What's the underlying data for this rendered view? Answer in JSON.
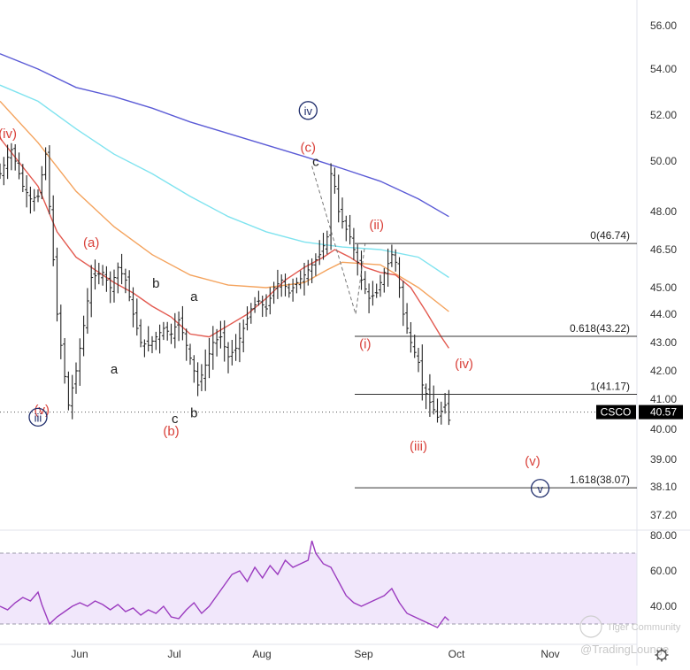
{
  "chart_data": [
    {
      "type": "candlestick",
      "symbol": "CSCO",
      "last_price": "40.57",
      "y_axis_ticks": [
        "56.00",
        "54.00",
        "52.00",
        "50.00",
        "48.00",
        "46.50",
        "45.00",
        "44.00",
        "43.00",
        "42.00",
        "41.00",
        "40.00",
        "39.00",
        "38.10",
        "37.20"
      ],
      "y_axis_values": [
        56.0,
        54.0,
        52.0,
        50.0,
        48.0,
        46.5,
        45.0,
        44.0,
        43.0,
        42.0,
        41.0,
        40.0,
        39.0,
        38.1,
        37.2
      ],
      "x_axis_ticks": [
        "Jun",
        "Jul",
        "Aug",
        "Sep",
        "Oct",
        "Nov"
      ],
      "price_path": [
        [
          0,
          49.5
        ],
        [
          3,
          50.5
        ],
        [
          6,
          49.0
        ],
        [
          8,
          48.5
        ],
        [
          10,
          48.6
        ],
        [
          12,
          50.3
        ],
        [
          13,
          48.2
        ],
        [
          15,
          44.0
        ],
        [
          17,
          41.8
        ],
        [
          18,
          40.8
        ],
        [
          20,
          42.0
        ],
        [
          22,
          43.6
        ],
        [
          24,
          45.4
        ],
        [
          27,
          45.6
        ],
        [
          29,
          45.0
        ],
        [
          31,
          45.8
        ],
        [
          33,
          45.3
        ],
        [
          35,
          44.0
        ],
        [
          37,
          43.0
        ],
        [
          39,
          42.9
        ],
        [
          41,
          43.2
        ],
        [
          43,
          43.5
        ],
        [
          45,
          43.3
        ],
        [
          47,
          43.8
        ],
        [
          49,
          42.9
        ],
        [
          51,
          42.0
        ],
        [
          52,
          41.5
        ],
        [
          54,
          42.2
        ],
        [
          56,
          43.0
        ],
        [
          58,
          43.2
        ],
        [
          60,
          42.5
        ],
        [
          62,
          42.8
        ],
        [
          64,
          43.5
        ],
        [
          66,
          44.2
        ],
        [
          68,
          44.5
        ],
        [
          70,
          44.2
        ],
        [
          72,
          45.0
        ],
        [
          74,
          45.3
        ],
        [
          76,
          44.8
        ],
        [
          78,
          45.2
        ],
        [
          80,
          45.5
        ],
        [
          82,
          45.9
        ],
        [
          84,
          46.3
        ],
        [
          86,
          47.0
        ],
        [
          87,
          49.5
        ],
        [
          88,
          49.0
        ],
        [
          89,
          48.0
        ],
        [
          90,
          47.6
        ],
        [
          92,
          47.0
        ],
        [
          94,
          46.0
        ],
        [
          95,
          45.3
        ],
        [
          97,
          44.6
        ],
        [
          99,
          44.8
        ],
        [
          101,
          45.6
        ],
        [
          103,
          46.3
        ],
        [
          104,
          46.0
        ],
        [
          106,
          44.0
        ],
        [
          108,
          43.0
        ],
        [
          110,
          42.3
        ],
        [
          111,
          41.5
        ],
        [
          113,
          40.9
        ],
        [
          115,
          40.4
        ],
        [
          117,
          40.8
        ],
        [
          118,
          40.3
        ]
      ],
      "ma_series": [
        {
          "color": "#5b5bd6",
          "path": [
            [
              0,
              54.7
            ],
            [
              10,
              54.0
            ],
            [
              20,
              53.2
            ],
            [
              30,
              52.8
            ],
            [
              40,
              52.3
            ],
            [
              50,
              51.7
            ],
            [
              60,
              51.2
            ],
            [
              70,
              50.7
            ],
            [
              80,
              50.2
            ],
            [
              90,
              49.7
            ],
            [
              100,
              49.2
            ],
            [
              110,
              48.5
            ],
            [
              118,
              47.8
            ]
          ]
        },
        {
          "color": "#7fe3ef",
          "path": [
            [
              0,
              53.3
            ],
            [
              10,
              52.6
            ],
            [
              20,
              51.4
            ],
            [
              30,
              50.3
            ],
            [
              40,
              49.5
            ],
            [
              50,
              48.6
            ],
            [
              60,
              47.8
            ],
            [
              70,
              47.2
            ],
            [
              80,
              46.8
            ],
            [
              90,
              46.6
            ],
            [
              100,
              46.5
            ],
            [
              110,
              46.2
            ],
            [
              118,
              45.4
            ]
          ]
        },
        {
          "color": "#f4a35d",
          "path": [
            [
              0,
              52.6
            ],
            [
              10,
              50.8
            ],
            [
              20,
              48.8
            ],
            [
              30,
              47.4
            ],
            [
              40,
              46.3
            ],
            [
              50,
              45.5
            ],
            [
              60,
              45.1
            ],
            [
              70,
              45.0
            ],
            [
              80,
              45.2
            ],
            [
              86,
              45.7
            ],
            [
              90,
              46.0
            ],
            [
              100,
              45.9
            ],
            [
              110,
              45.0
            ],
            [
              118,
              44.1
            ]
          ]
        },
        {
          "color": "#e35a50",
          "path": [
            [
              0,
              51.0
            ],
            [
              10,
              49.0
            ],
            [
              15,
              47.2
            ],
            [
              20,
              46.2
            ],
            [
              25,
              45.7
            ],
            [
              30,
              45.2
            ],
            [
              35,
              44.8
            ],
            [
              40,
              44.3
            ],
            [
              45,
              43.9
            ],
            [
              50,
              43.3
            ],
            [
              55,
              43.2
            ],
            [
              60,
              43.6
            ],
            [
              65,
              44.0
            ],
            [
              70,
              44.6
            ],
            [
              75,
              45.3
            ],
            [
              80,
              45.8
            ],
            [
              85,
              46.2
            ],
            [
              88,
              46.5
            ],
            [
              92,
              46.2
            ],
            [
              96,
              45.8
            ],
            [
              100,
              45.6
            ],
            [
              104,
              45.5
            ],
            [
              108,
              45.0
            ],
            [
              112,
              44.1
            ],
            [
              116,
              43.2
            ],
            [
              118,
              42.8
            ]
          ]
        }
      ],
      "wave_labels": [
        {
          "text": "(iv)",
          "color": "red",
          "x": 2,
          "price": 51.0
        },
        {
          "text": "(a)",
          "color": "red",
          "x": 24,
          "price": 46.6
        },
        {
          "text": "b",
          "color": "black",
          "x": 41,
          "price": 45.0
        },
        {
          "text": "a",
          "color": "black",
          "x": 30,
          "price": 41.9
        },
        {
          "text": "a",
          "color": "black",
          "x": 51,
          "price": 44.5
        },
        {
          "text": "c",
          "color": "black",
          "x": 46,
          "price": 40.2
        },
        {
          "text": "b",
          "color": "black",
          "x": 51,
          "price": 40.4
        },
        {
          "text": "(b)",
          "color": "red",
          "x": 45,
          "price": 39.8
        },
        {
          "text": "(c)",
          "color": "red",
          "x": 81,
          "price": 50.4
        },
        {
          "text": "c",
          "color": "black",
          "x": 83,
          "price": 49.8
        },
        {
          "text": "(ii)",
          "color": "red",
          "x": 99,
          "price": 47.3
        },
        {
          "text": "(i)",
          "color": "red",
          "x": 96,
          "price": 42.8
        },
        {
          "text": "(iv)",
          "color": "red",
          "x": 122,
          "price": 42.1
        },
        {
          "text": "(iii)",
          "color": "red",
          "x": 110,
          "price": 39.3
        },
        {
          "text": "(v)",
          "color": "red",
          "x": 140,
          "price": 38.8
        },
        {
          "text": "(v)",
          "color": "red",
          "x": 11,
          "price": 40.5
        }
      ],
      "circle_labels": [
        {
          "text": "iv",
          "x": 81,
          "price": 52.2
        },
        {
          "text": "iii",
          "x": 10,
          "price": 40.4
        },
        {
          "text": "v",
          "x": 142,
          "price": 38.05
        }
      ],
      "fib_levels": [
        {
          "label": "0(46.74)",
          "value": 46.74
        },
        {
          "label": "0.618(43.22)",
          "value": 43.22
        },
        {
          "label": "1(41.17)",
          "value": 41.17
        },
        {
          "label": "1.618(38.07)",
          "value": 38.07
        }
      ],
      "watermark": "Tiger Community",
      "brand": "@TradingLounge"
    },
    {
      "type": "line",
      "indicator": "RSI",
      "y_axis_ticks": [
        "80.00",
        "60.00",
        "40.00"
      ],
      "y_axis_values": [
        80,
        60,
        40
      ],
      "band": [
        30,
        70
      ],
      "x": [
        0,
        2,
        4,
        6,
        8,
        10,
        11,
        13,
        15,
        17,
        19,
        21,
        23,
        25,
        27,
        29,
        31,
        33,
        35,
        37,
        39,
        41,
        43,
        45,
        47,
        49,
        51,
        53,
        55,
        57,
        59,
        61,
        63,
        65,
        67,
        69,
        71,
        73,
        75,
        77,
        79,
        81,
        82,
        83,
        85,
        87,
        89,
        91,
        93,
        95,
        97,
        99,
        101,
        103,
        105,
        107,
        109,
        111,
        113,
        115,
        117,
        118
      ],
      "values": [
        40,
        38,
        42,
        45,
        43,
        48,
        41,
        30,
        34,
        37,
        40,
        42,
        40,
        43,
        41,
        38,
        41,
        37,
        39,
        35,
        38,
        36,
        40,
        34,
        33,
        38,
        42,
        36,
        40,
        46,
        52,
        58,
        60,
        54,
        62,
        56,
        63,
        58,
        66,
        62,
        64,
        66,
        77,
        70,
        64,
        62,
        54,
        46,
        42,
        40,
        42,
        44,
        46,
        50,
        42,
        36,
        34,
        32,
        30,
        28,
        34,
        32
      ]
    }
  ]
}
